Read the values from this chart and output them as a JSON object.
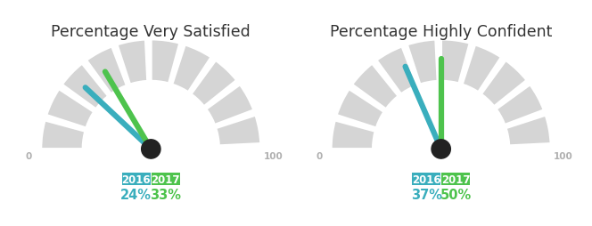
{
  "gauges": [
    {
      "title": "Percentage Very Satisfied",
      "value_2016": 24,
      "value_2017": 33,
      "label_2016": "24%",
      "label_2017": "33%"
    },
    {
      "title": "Percentage Highly Confident",
      "value_2016": 37,
      "value_2017": 50,
      "label_2016": "37%",
      "label_2017": "50%"
    }
  ],
  "color_2016": "#3aaebd",
  "color_2017": "#4ec34d",
  "color_2016_box": "#3aaebd",
  "color_2017_box": "#4ec34d",
  "color_2016_text": "#3aaebd",
  "color_2017_text": "#4ec34d",
  "gauge_bg_color": "#d5d5d5",
  "gauge_divider_color": "#ffffff",
  "needle_hub_color": "#222222",
  "text_color": "#333333",
  "background_color": "#ffffff",
  "num_segments": 10,
  "title_fontsize": 12.5
}
